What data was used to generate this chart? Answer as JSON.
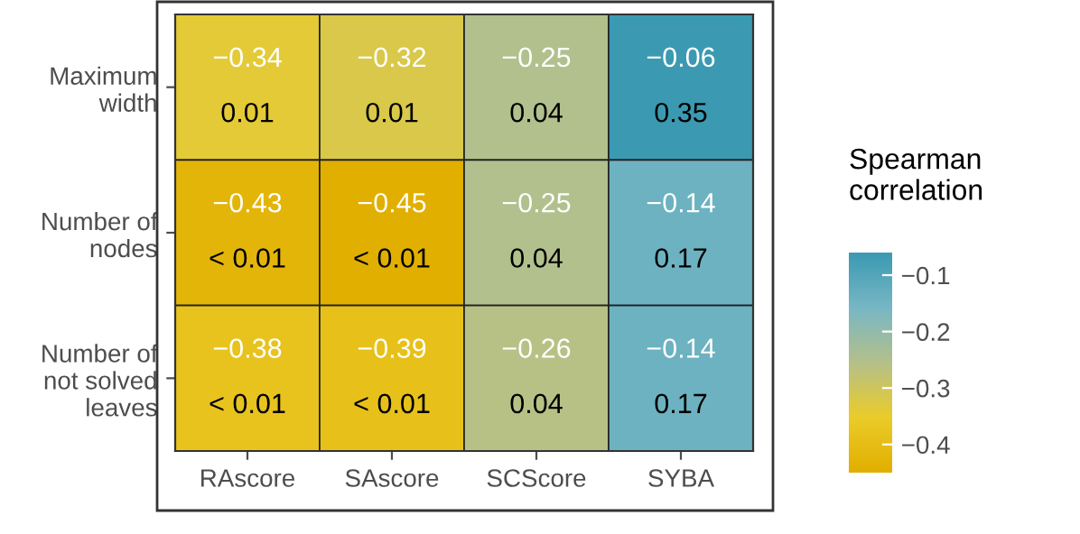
{
  "chart_data": {
    "type": "heatmap",
    "legend_title": "Spearman\ncorrelation",
    "categories": [
      "RAscore",
      "SAscore",
      "SCScore",
      "SYBA"
    ],
    "y_categories": [
      "Maximum\nwidth",
      "Number of\nnodes",
      "Number of\nnot solved\nleaves"
    ],
    "cells": [
      [
        -0.34,
        -0.32,
        -0.25,
        -0.06
      ],
      [
        -0.43,
        -0.45,
        -0.25,
        -0.14
      ],
      [
        -0.38,
        -0.39,
        -0.26,
        -0.14
      ]
    ],
    "cell_labels": [
      [
        "−0.34\n0.01",
        "−0.32\n0.01",
        "−0.25\n0.04",
        "−0.06\n0.35"
      ],
      [
        "−0.43\n< 0.01",
        "−0.45\n< 0.01",
        "−0.25\n0.04",
        "−0.14\n0.17"
      ],
      [
        "−0.38\n< 0.01",
        "−0.39\n< 0.01",
        "−0.26\n0.04",
        "−0.14\n0.17"
      ]
    ],
    "clim": [
      -0.45,
      -0.06
    ],
    "cticks": [
      {
        "value": -0.4,
        "label": "−0.4"
      },
      {
        "value": -0.3,
        "label": "−0.3"
      },
      {
        "value": -0.2,
        "label": "−0.2"
      },
      {
        "value": -0.1,
        "label": "−0.1"
      }
    ],
    "colors": [
      "#E1AF00",
      "#EBCC2A",
      "#B5C08A",
      "#78B7C5",
      "#3B9AB2"
    ]
  }
}
